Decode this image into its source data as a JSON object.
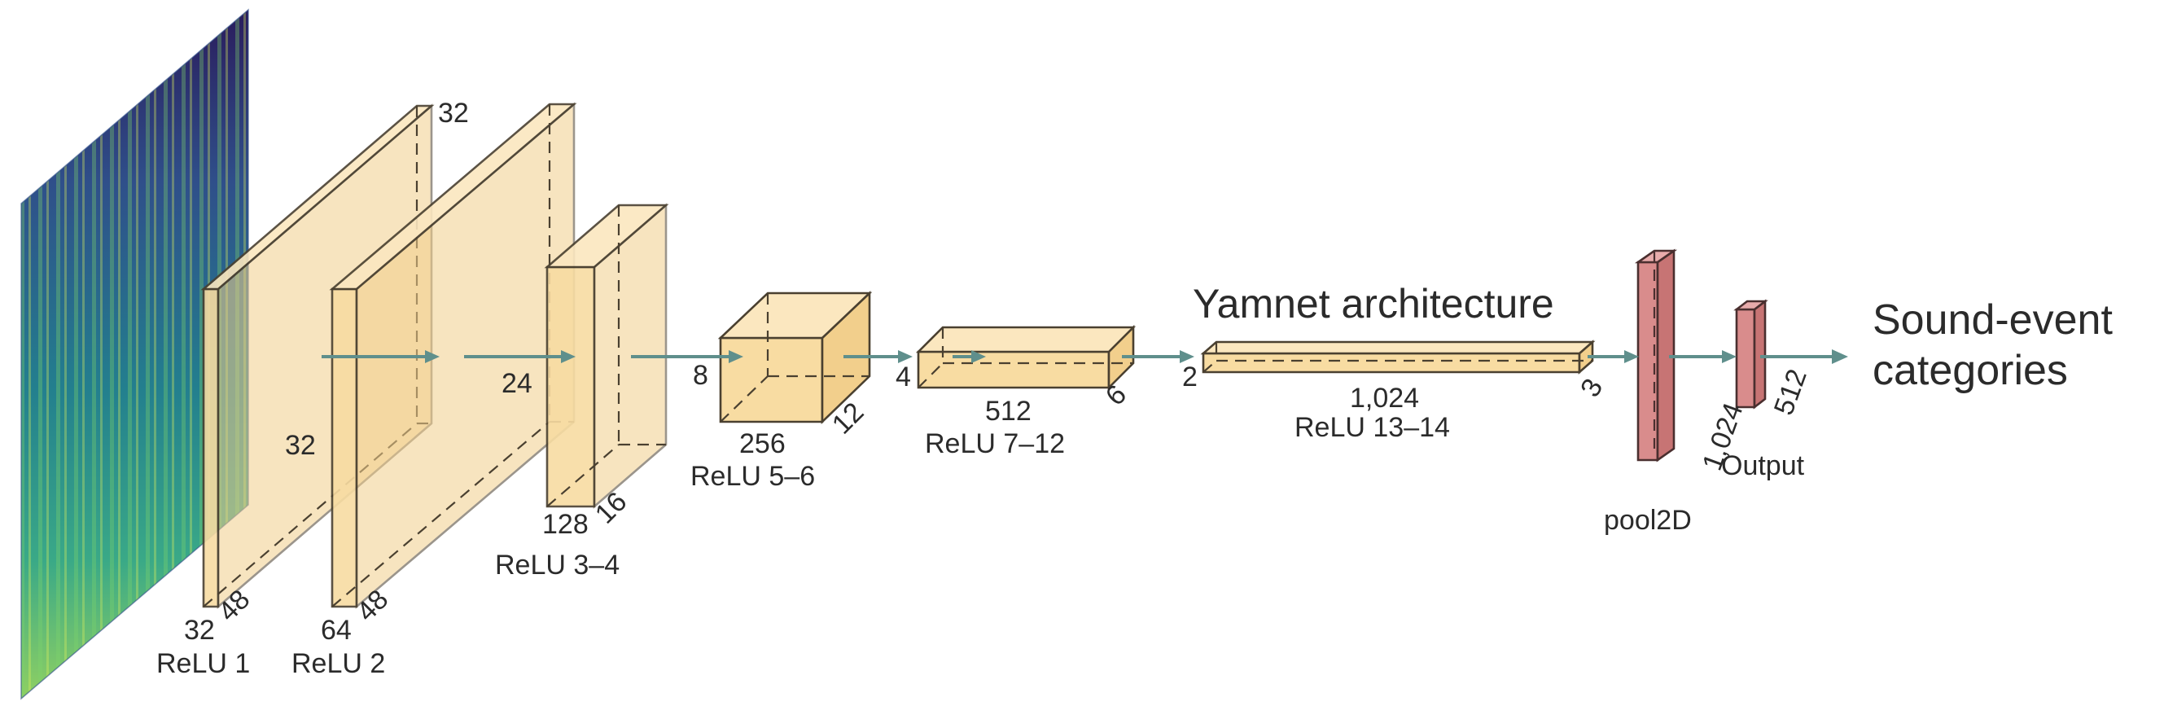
{
  "title": "Yamnet architecture",
  "output_label": [
    "Sound-event",
    "categories"
  ],
  "colors": {
    "layer": "#f8dca2",
    "pool": "#d98c8c",
    "arrow": "#5f8f8c"
  },
  "layers": [
    {
      "name": "ReLU 1",
      "dims": [
        "32",
        "32",
        "48"
      ]
    },
    {
      "name": "ReLU 2",
      "dims": [
        "64",
        "48"
      ]
    },
    {
      "name": "ReLU 3–4",
      "dims": [
        "24",
        "128",
        "16"
      ]
    },
    {
      "name": "ReLU 5–6",
      "dims": [
        "8",
        "256",
        "12"
      ]
    },
    {
      "name": "ReLU 7–12",
      "dims": [
        "4",
        "512",
        "6"
      ]
    },
    {
      "name": "ReLU 13–14",
      "dims": [
        "2",
        "1,024",
        "3"
      ]
    },
    {
      "name": "pool2D",
      "dims": [
        "1,024"
      ]
    },
    {
      "name": "Output",
      "dims": [
        "512"
      ]
    }
  ]
}
